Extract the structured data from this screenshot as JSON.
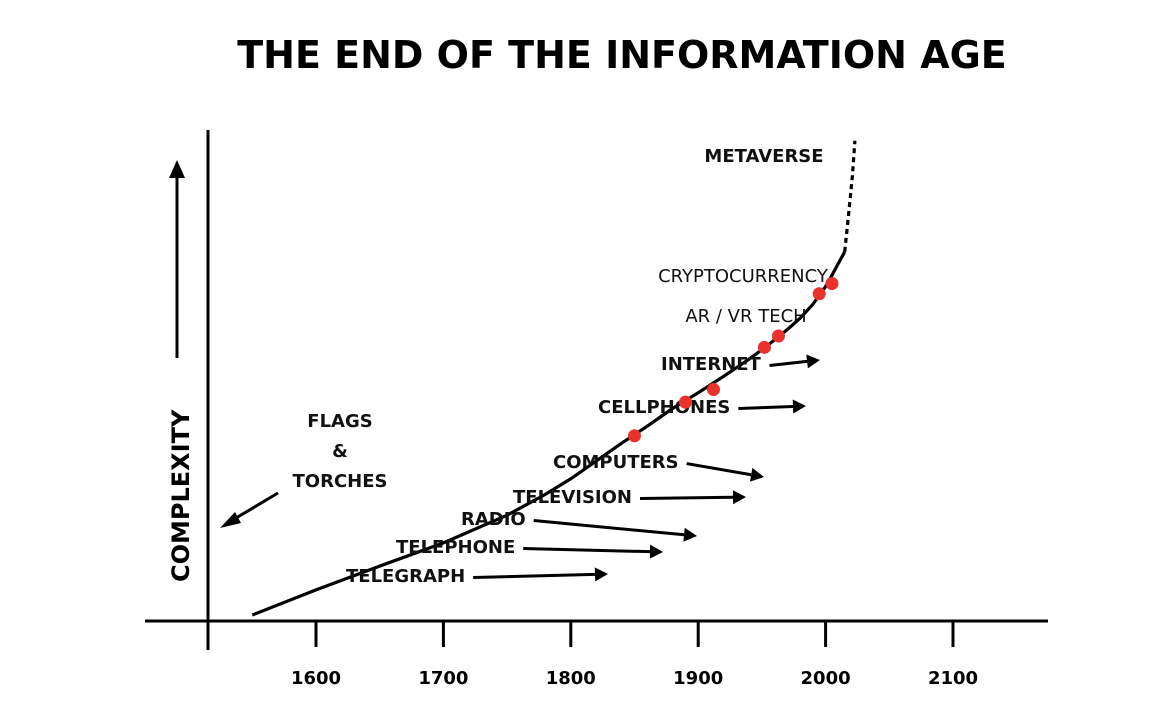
{
  "chart_data": {
    "type": "line",
    "title": "THE END OF THE INFORMATION AGE",
    "ylabel": "COMPLEXITY",
    "xlabel": "",
    "x_ticks": [
      1600,
      1700,
      1800,
      1900,
      2000,
      2100
    ],
    "xlim": [
      1550,
      2150
    ],
    "series": [
      {
        "x": [
          1550,
          1600,
          1650,
          1700,
          1750,
          1780,
          1800,
          1820,
          1840,
          1860,
          1880,
          1900,
          1920,
          1940,
          1955,
          1970,
          1980,
          1990,
          2000,
          2005,
          2010,
          2015
        ],
        "y": [
          1,
          1.5,
          2.2,
          3.2,
          5,
          7,
          9,
          12,
          16,
          21,
          28,
          36,
          47,
          62,
          78,
          100,
          120,
          150,
          200,
          240,
          290,
          350
        ]
      }
    ],
    "projection": {
      "label": "METAVERSE",
      "style": "dashed"
    },
    "points": [
      {
        "label": "TELEGRAPH",
        "x": 1850,
        "y": 18
      },
      {
        "label": "TELEPHONE",
        "x": 1890,
        "y": 31
      },
      {
        "label": "RADIO",
        "x": 1912,
        "y": 38
      },
      {
        "label": "TELEVISION",
        "x": 1952,
        "y": 75
      },
      {
        "label": "COMPUTERS",
        "x": 1963,
        "y": 90
      },
      {
        "label": "CELLPHONES",
        "x": 1995,
        "y": 178
      },
      {
        "label": "INTERNET",
        "x": 2005,
        "y": 210
      }
    ],
    "annotations": [
      {
        "text": "FLAGS",
        "line": 1
      },
      {
        "text": "&",
        "line": 2
      },
      {
        "text": "TORCHES",
        "line": 3
      },
      {
        "text": "CRYPTOCURRENCY"
      },
      {
        "text": "AR / VR TECH"
      }
    ],
    "grid": false,
    "legend": "none",
    "colors": {
      "line": "#000000",
      "point": "#e8322a",
      "background": "#ffffff"
    }
  }
}
